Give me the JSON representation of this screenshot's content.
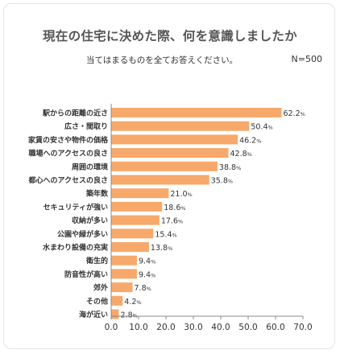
{
  "header": {
    "title": "現在の住宅に決めた際、何を意識しましたか",
    "subtitle": "当てはまるものを全てお答えください。",
    "sample_size": "N=500"
  },
  "colors": {
    "bar": "#F6A96B",
    "axis": "#888888",
    "text": "#333333"
  },
  "chart_data": {
    "type": "bar",
    "orientation": "horizontal",
    "categories": [
      "駅からの距離の近さ",
      "広さ・間取り",
      "家賃の安さや物件の価格",
      "職場へのアクセスの良さ",
      "周囲の環境",
      "都心へのアクセスの良さ",
      "築年数",
      "セキュリティが強い",
      "収納が多い",
      "公園や緑が多い",
      "水まわり設備の充実",
      "衛生的",
      "防音性が高い",
      "郊外",
      "その他",
      "海が近い"
    ],
    "values": [
      62.2,
      50.4,
      46.2,
      42.8,
      38.8,
      35.8,
      21.0,
      18.6,
      17.6,
      15.4,
      13.8,
      9.4,
      9.4,
      7.8,
      4.2,
      2.8
    ],
    "value_labels": [
      "62.2",
      "50.4",
      "46.2",
      "42.8",
      "38.8",
      "35.8",
      "21.0",
      "18.6",
      "17.6",
      "15.4",
      "13.8",
      "9.4",
      "9.4",
      "7.8",
      "4.2",
      "2.8"
    ],
    "value_unit": "%",
    "xlim": [
      0,
      70
    ],
    "x_ticks": [
      "0.0",
      "10.0",
      "20.0",
      "30.0",
      "40.0",
      "50.0",
      "60.0",
      "70.0"
    ],
    "grid": false,
    "legend": "none"
  }
}
